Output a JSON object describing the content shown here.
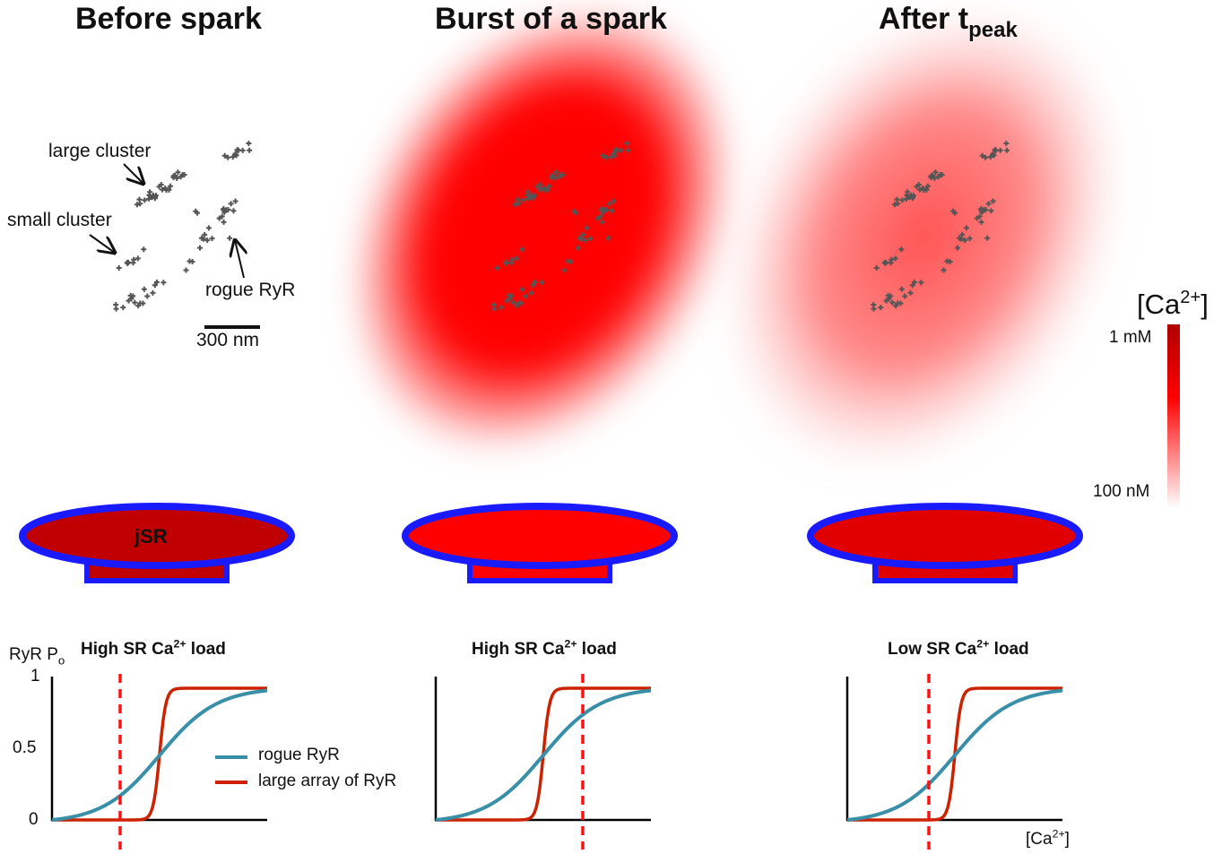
{
  "panels": [
    {
      "title": "Before spark"
    },
    {
      "title": "Burst of a spark"
    },
    {
      "title": "After t",
      "title_sub": "peak"
    }
  ],
  "annotations": {
    "large_cluster": "large cluster",
    "small_cluster": "small cluster",
    "rogue": "rogue RyR",
    "scale_bar": "300 nm"
  },
  "colorbar": {
    "title": "[Ca",
    "title_sup": "2+",
    "title_end": "]",
    "top_label": "1 mM",
    "bottom_label": "100 nM"
  },
  "jsr_label": "jSR",
  "plots": {
    "y_label": "RyR P",
    "y_label_sub": "o",
    "yticks": [
      "1",
      "0.5",
      "0"
    ],
    "x_label": "[Ca",
    "x_label_sup": "2+",
    "x_label_end": "]",
    "titles": [
      {
        "pre": "High SR Ca",
        "sup": "2+",
        "post": " load"
      },
      {
        "pre": "High SR Ca",
        "sup": "2+",
        "post": " load"
      },
      {
        "pre": "Low SR Ca",
        "sup": "2+",
        "post": " load"
      }
    ],
    "legend": [
      "rogue RyR",
      "large array of RyR"
    ]
  }
}
